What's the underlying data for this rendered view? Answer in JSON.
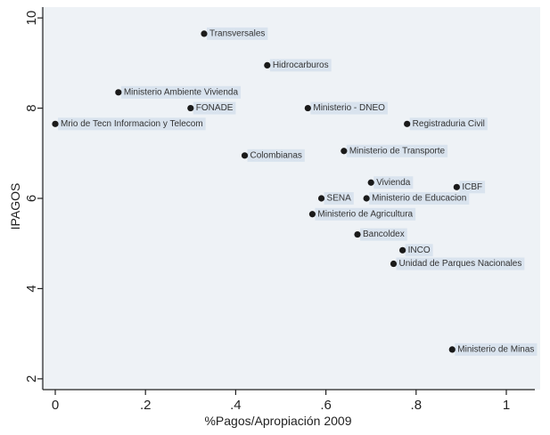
{
  "chart_data": {
    "type": "scatter",
    "title": "",
    "xlabel": "%Pagos/Apropiación 2009",
    "ylabel": "IPAGOS",
    "xlim": [
      0,
      1
    ],
    "ylim": [
      1.8,
      10.2
    ],
    "x_ticks": [
      0,
      0.2,
      0.4,
      0.6,
      0.8,
      1
    ],
    "x_tick_labels": [
      "0",
      ".2",
      ".4",
      ".6",
      ".8",
      "1"
    ],
    "y_ticks": [
      2,
      4,
      6,
      8,
      10
    ],
    "y_tick_labels": [
      "2",
      "4",
      "6",
      "8",
      "10"
    ],
    "grid": false,
    "legend": "none",
    "colors": {
      "plot_background": "#eef2f6",
      "label_background": "#d9e3ee",
      "marker": "#1a1a1a",
      "axis": "#222222"
    },
    "points": [
      {
        "label": "Transversales",
        "x": 0.33,
        "y": 9.65
      },
      {
        "label": "Hidrocarburos",
        "x": 0.47,
        "y": 8.95
      },
      {
        "label": "Ministerio Ambiente Vivienda",
        "x": 0.14,
        "y": 8.35
      },
      {
        "label": "FONADE",
        "x": 0.3,
        "y": 8.0
      },
      {
        "label": "Ministerio - DNEO",
        "x": 0.56,
        "y": 8.0
      },
      {
        "label": "Mrio de Tecn Informacion y Telecom",
        "x": 0.0,
        "y": 7.65
      },
      {
        "label": "Registraduria Civil",
        "x": 0.78,
        "y": 7.65
      },
      {
        "label": "Colombianas",
        "x": 0.42,
        "y": 6.95
      },
      {
        "label": "Ministerio de Transporte",
        "x": 0.64,
        "y": 7.05
      },
      {
        "label": "Vivienda",
        "x": 0.7,
        "y": 6.35
      },
      {
        "label": "ICBF",
        "x": 0.89,
        "y": 6.25
      },
      {
        "label": "SENA",
        "x": 0.59,
        "y": 6.0
      },
      {
        "label": "Ministerio de Educacion",
        "x": 0.69,
        "y": 6.0
      },
      {
        "label": "Ministerio de Agricultura",
        "x": 0.57,
        "y": 5.65
      },
      {
        "label": "Bancoldex",
        "x": 0.67,
        "y": 5.2
      },
      {
        "label": "INCO",
        "x": 0.77,
        "y": 4.85
      },
      {
        "label": "Unidad de Parques Nacionales",
        "x": 0.75,
        "y": 4.55
      },
      {
        "label": "Ministerio de Minas",
        "x": 0.88,
        "y": 2.65
      }
    ]
  }
}
